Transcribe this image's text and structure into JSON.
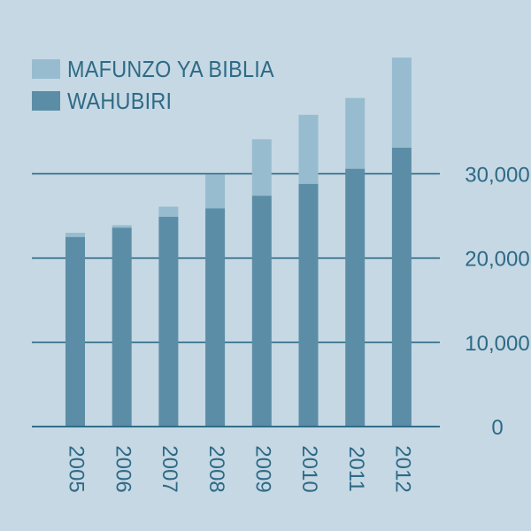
{
  "colors": {
    "background": "#c5d8e4",
    "gridline": "#1f5f7c",
    "tick_text": "#2e6a86",
    "publishers": "#5b8ea6",
    "bible_studies": "#97bcd0"
  },
  "legend": {
    "bible_studies_label": "MAFUNZO YA BIBLIA",
    "publishers_label": "WAHUBIRI",
    "placement": "top-left"
  },
  "chart_data": {
    "type": "bar",
    "stacked": true,
    "categories": [
      "2005",
      "2006",
      "2007",
      "2008",
      "2009",
      "2010",
      "2011",
      "2012"
    ],
    "series": [
      {
        "name": "WAHUBIRI",
        "values": [
          22500,
          23600,
          24900,
          25900,
          27400,
          28800,
          30600,
          33100
        ]
      },
      {
        "name": "MAFUNZO YA BIBLIA",
        "values": [
          500,
          300,
          1200,
          4000,
          6700,
          8200,
          8400,
          10700
        ]
      }
    ],
    "ylim": [
      0,
      43800
    ],
    "y_ticks": [
      0,
      10000,
      20000,
      30000
    ],
    "y_tick_labels": [
      "0",
      "10,000",
      "20,000",
      "30,000"
    ],
    "y_axis_side": "right",
    "grid": true,
    "xlabel": "",
    "ylabel": "",
    "title": ""
  }
}
